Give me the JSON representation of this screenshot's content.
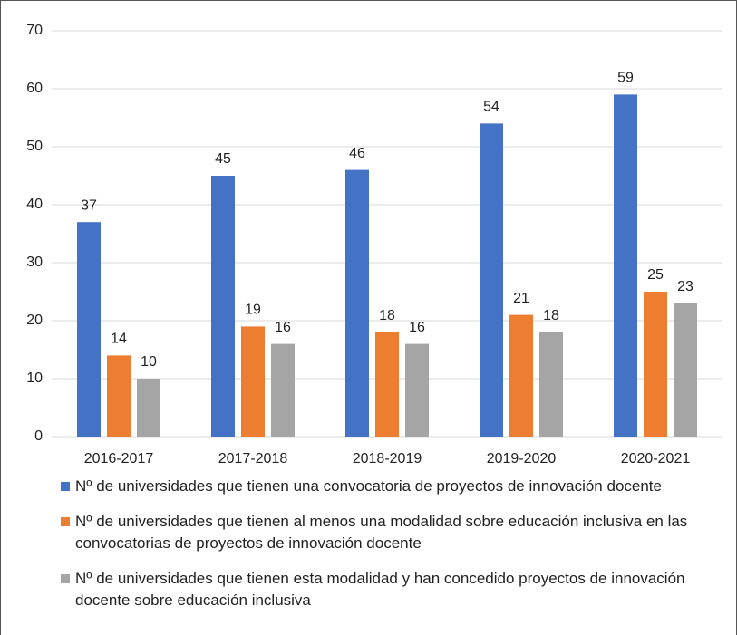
{
  "chart_data": {
    "type": "bar",
    "categories": [
      "2016-2017",
      "2017-2018",
      "2018-2019",
      "2019-2020",
      "2020-2021"
    ],
    "series": [
      {
        "name": "Nº de universidades que tienen una convocatoria de proyectos de innovación docente",
        "color": "#4472c4",
        "values": [
          37,
          45,
          46,
          54,
          59
        ]
      },
      {
        "name": "Nº de universidades que tienen al menos una modalidad sobre educación inclusiva en las convocatorias de proyectos de innovación docente",
        "color": "#ed7d31",
        "values": [
          14,
          19,
          18,
          21,
          25
        ]
      },
      {
        "name": "Nº de universidades que tienen esta modalidad y han concedido proyectos de innovación docente sobre educación inclusiva",
        "color": "#a5a5a5",
        "values": [
          10,
          16,
          16,
          18,
          23
        ]
      }
    ],
    "ylim": [
      0,
      70
    ],
    "yticks": [
      0,
      10,
      20,
      30,
      40,
      50,
      60,
      70
    ],
    "grid": true
  }
}
